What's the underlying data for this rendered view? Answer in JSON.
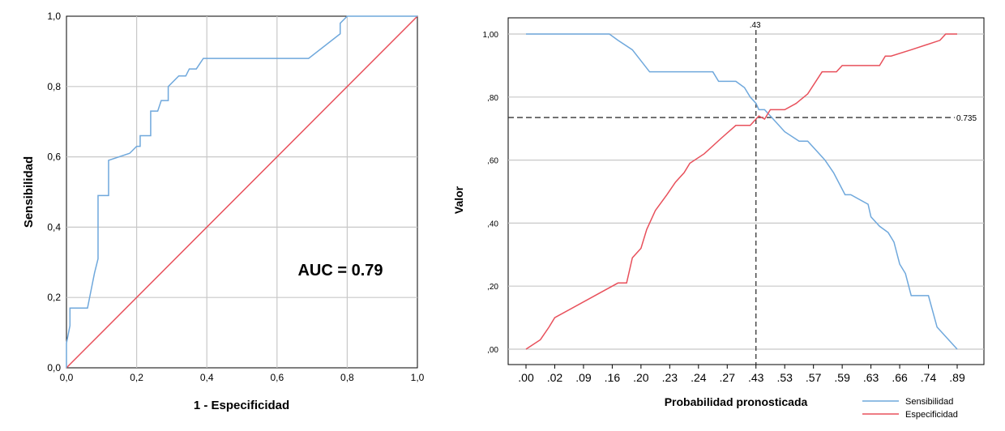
{
  "chart_data": [
    {
      "type": "line",
      "xlabel": "1 - Especificidad",
      "ylabel": "Sensibilidad",
      "xlim": [
        0,
        1
      ],
      "ylim": [
        0,
        1
      ],
      "x_ticks": [
        "0,0",
        "0,2",
        "0,4",
        "0,6",
        "0,8",
        "1,0"
      ],
      "y_ticks": [
        "0,0",
        "0,2",
        "0,4",
        "0,6",
        "0,8",
        "1,0"
      ],
      "grid": true,
      "annotation": "AUC = 0.79",
      "colors": {
        "roc": "#6fa8dc",
        "reference": "#e8505b"
      },
      "series": [
        {
          "values": [
            [
              0,
              0
            ],
            [
              0,
              0.07
            ],
            [
              0.01,
              0.12
            ],
            [
              0.01,
              0.17
            ],
            [
              0.06,
              0.17
            ],
            [
              0.07,
              0.22
            ],
            [
              0.08,
              0.27
            ],
            [
              0.09,
              0.31
            ],
            [
              0.09,
              0.49
            ],
            [
              0.12,
              0.49
            ],
            [
              0.12,
              0.59
            ],
            [
              0.18,
              0.61
            ],
            [
              0.2,
              0.63
            ],
            [
              0.21,
              0.63
            ],
            [
              0.21,
              0.66
            ],
            [
              0.24,
              0.66
            ],
            [
              0.24,
              0.73
            ],
            [
              0.26,
              0.73
            ],
            [
              0.27,
              0.76
            ],
            [
              0.29,
              0.76
            ],
            [
              0.29,
              0.8
            ],
            [
              0.32,
              0.83
            ],
            [
              0.34,
              0.83
            ],
            [
              0.35,
              0.85
            ],
            [
              0.37,
              0.85
            ],
            [
              0.39,
              0.88
            ],
            [
              0.69,
              0.88
            ],
            [
              0.78,
              0.95
            ],
            [
              0.78,
              0.98
            ],
            [
              0.8,
              1
            ],
            [
              1,
              1
            ]
          ]
        },
        {
          "values": [
            [
              0,
              0
            ],
            [
              1,
              1
            ]
          ]
        }
      ]
    },
    {
      "type": "line",
      "xlabel": "Probabilidad pronosticada",
      "ylabel": "Valor",
      "ylim": [
        0,
        1
      ],
      "categories": [
        ".00",
        ".02",
        ".09",
        ".16",
        ".20",
        ".23",
        ".24",
        ".27",
        ".43",
        ".53",
        ".57",
        ".59",
        ".63",
        ".66",
        ".74",
        ".89"
      ],
      "y_ticks": [
        ",00",
        ",20",
        ",40",
        ",60",
        ",80",
        "1,00"
      ],
      "grid": true,
      "legend_position": "bottom-right",
      "reference_lines": {
        "vertical_label": ".43",
        "vertical_x_index": 8,
        "horizontal_label": "0.735",
        "horizontal_y": 0.735
      },
      "series": [
        {
          "name": "Sensibilidad",
          "color": "#6fa8dc",
          "x": [
            0,
            1,
            1.5,
            2,
            2.5,
            2.9,
            3.2,
            3.7,
            4.3,
            5.9,
            6.3,
            6.5,
            6.7,
            7.3,
            7.6,
            7.8,
            8,
            8.1,
            8.3,
            8.6,
            9.0,
            9.5,
            9.8,
            10.1,
            10.4,
            10.7,
            11.1,
            11.3,
            11.9,
            12.0,
            12.3,
            12.6,
            12.8,
            13.0,
            13.2,
            13.4,
            13.8,
            14.0,
            14.3,
            15.0
          ],
          "values": [
            1,
            1,
            1,
            1,
            1,
            1,
            0.98,
            0.95,
            0.88,
            0.88,
            0.88,
            0.88,
            0.85,
            0.85,
            0.83,
            0.8,
            0.78,
            0.76,
            0.76,
            0.73,
            0.69,
            0.66,
            0.66,
            0.63,
            0.6,
            0.56,
            0.49,
            0.49,
            0.46,
            0.42,
            0.39,
            0.37,
            0.34,
            0.27,
            0.24,
            0.17,
            0.17,
            0.17,
            0.07,
            0
          ]
        },
        {
          "name": "Especificidad",
          "color": "#e8505b",
          "x": [
            0,
            0.5,
            0.8,
            1.0,
            3.2,
            3.5,
            3.7,
            4.0,
            4.2,
            4.5,
            4.9,
            5.2,
            5.5,
            5.7,
            6.2,
            6.8,
            7.3,
            7.5,
            7.8,
            8.0,
            8.1,
            8.3,
            8.5,
            9.0,
            9.4,
            9.8,
            10.3,
            10.5,
            10.8,
            11.0,
            11.3,
            12.3,
            12.5,
            12.7,
            13.4,
            14.4,
            14.6,
            15.0
          ],
          "values": [
            0,
            0.03,
            0.07,
            0.1,
            0.21,
            0.21,
            0.29,
            0.32,
            0.38,
            0.44,
            0.49,
            0.53,
            0.56,
            0.59,
            0.62,
            0.67,
            0.71,
            0.71,
            0.71,
            0.73,
            0.74,
            0.73,
            0.76,
            0.76,
            0.78,
            0.81,
            0.88,
            0.88,
            0.88,
            0.9,
            0.9,
            0.9,
            0.93,
            0.93,
            0.95,
            0.98,
            1,
            1
          ]
        }
      ]
    }
  ]
}
